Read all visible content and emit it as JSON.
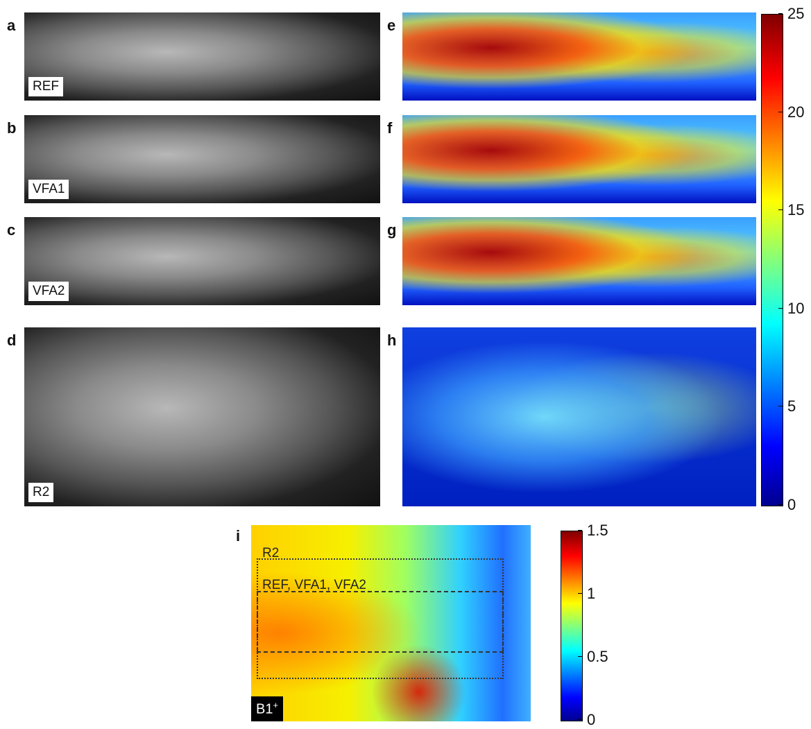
{
  "panels": [
    {
      "letter": "a",
      "label": "REF"
    },
    {
      "letter": "b",
      "label": "VFA1"
    },
    {
      "letter": "c",
      "label": "VFA2"
    },
    {
      "letter": "d",
      "label": "R2"
    },
    {
      "letter": "e"
    },
    {
      "letter": "f"
    },
    {
      "letter": "g"
    },
    {
      "letter": "h"
    },
    {
      "letter": "i",
      "label": {
        "base": "B1",
        "sup": "+"
      },
      "regions": [
        "R2",
        "REF, VFA1, VFA2"
      ]
    }
  ],
  "colorbars": [
    {
      "ticks": [
        0,
        5,
        10,
        15,
        20,
        25
      ]
    },
    {
      "ticks": [
        0,
        0.5,
        1,
        1.5
      ]
    }
  ]
}
